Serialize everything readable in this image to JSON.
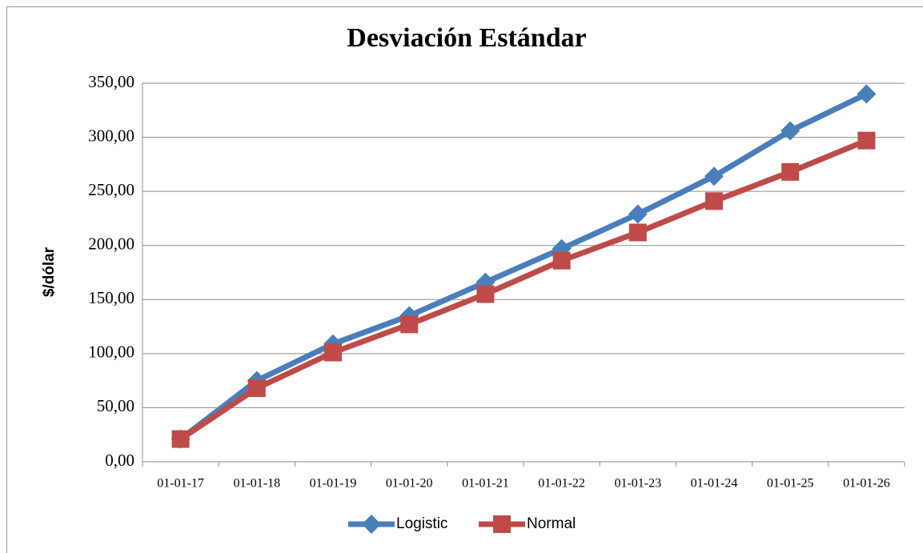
{
  "chart_data": {
    "type": "line",
    "title": "Desviación Estándar",
    "y_label": "$/dólar",
    "categories": [
      "01-01-17",
      "01-01-18",
      "01-01-19",
      "01-01-20",
      "01-01-21",
      "01-01-22",
      "01-01-23",
      "01-01-24",
      "01-01-25",
      "01-01-26"
    ],
    "series": [
      {
        "name": "Logistic",
        "color": "#4a7ebb",
        "marker": "diamond",
        "values": [
          21,
          75,
          109,
          135,
          166,
          197,
          229,
          264,
          306,
          340
        ]
      },
      {
        "name": "Normal",
        "color": "#be4b48",
        "marker": "square",
        "values": [
          21,
          68,
          101,
          127,
          155,
          186,
          212,
          241,
          268,
          297
        ]
      }
    ],
    "ylim": [
      0,
      350
    ],
    "yticks": [
      {
        "value": 0,
        "label": "0,00"
      },
      {
        "value": 50,
        "label": "50,00"
      },
      {
        "value": 100,
        "label": "100,00"
      },
      {
        "value": 150,
        "label": "150,00"
      },
      {
        "value": 200,
        "label": "200,00"
      },
      {
        "value": 250,
        "label": "250,00"
      },
      {
        "value": 300,
        "label": "300,00"
      },
      {
        "value": 350,
        "label": "350,00"
      }
    ],
    "grid": true,
    "legend": "bottom"
  }
}
